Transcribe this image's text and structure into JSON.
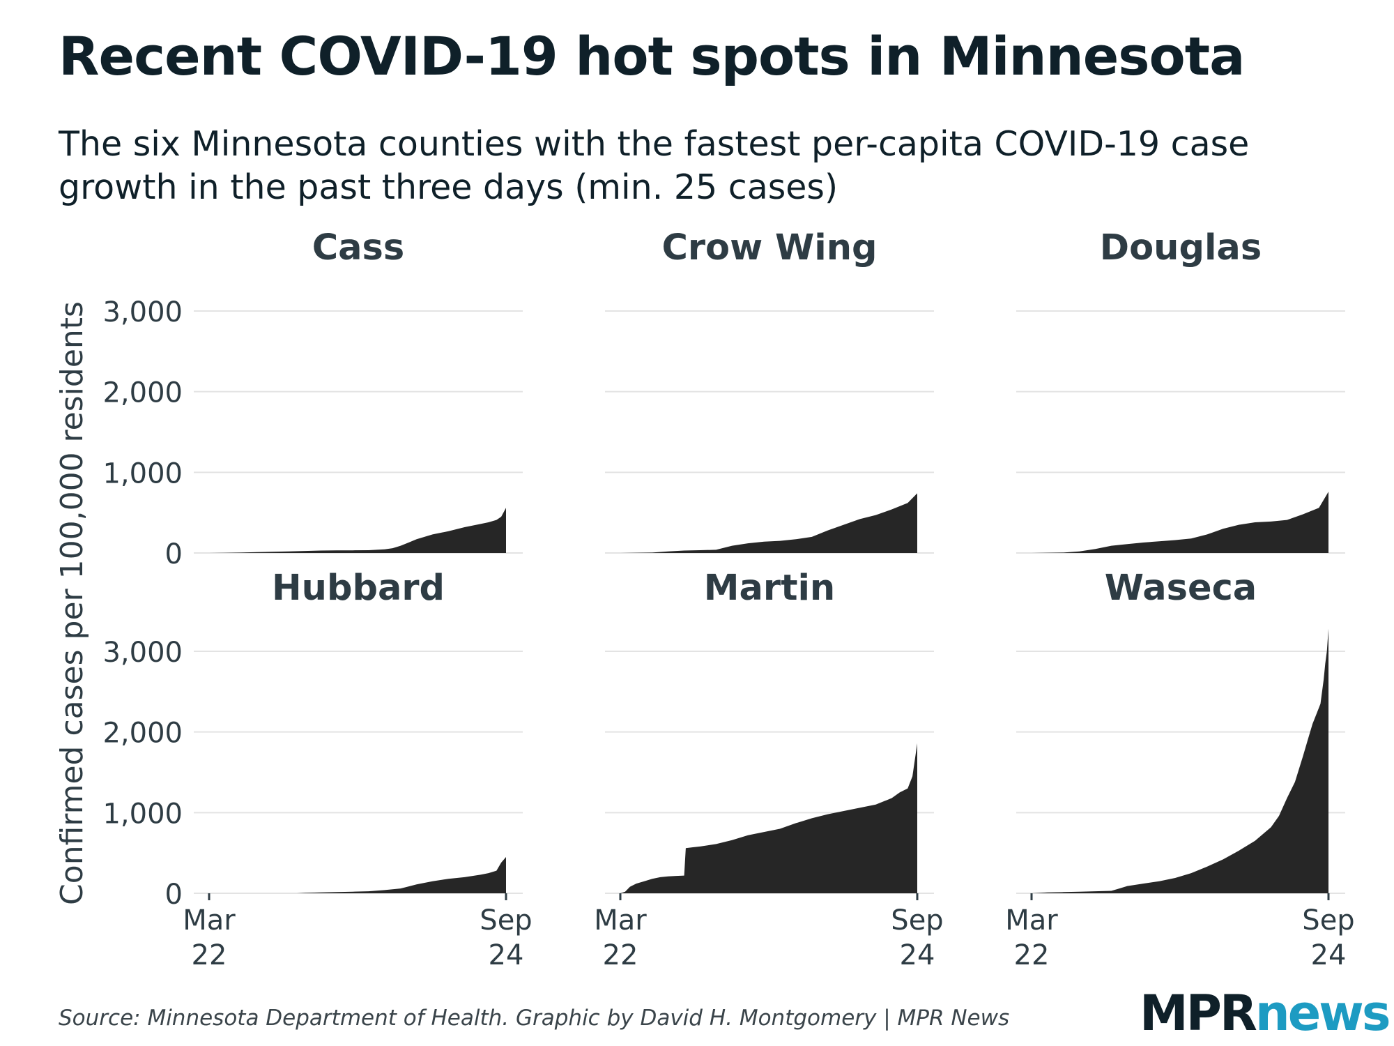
{
  "title": "Recent COVID-19 hot spots in Minnesota",
  "subtitle_line1": "The six Minnesota counties with the fastest per-capita COVID-19 case",
  "subtitle_line2": "growth in the past three days (min. 25 cases)",
  "source": "Source: Minnesota Department of Health. Graphic by David H. Montgomery | MPR News",
  "logo": {
    "part1": "MPR",
    "part2": "news"
  },
  "colors": {
    "area": "#262626",
    "grid": "#e3e3e3",
    "text": "#2e3c44",
    "accent": "#1d9bc2"
  },
  "chart_data": {
    "type": "area",
    "ylabel": "Confirmed cases per 100,000 residents",
    "xlabel": "",
    "ylim": [
      0,
      3300
    ],
    "yticks": [
      0,
      1000,
      2000,
      3000
    ],
    "ytick_labels": [
      "0",
      "1,000",
      "2,000",
      "3,000"
    ],
    "x_range_days": [
      0,
      186
    ],
    "xticks": [
      {
        "day": 0,
        "line1": "Mar",
        "line2": "22"
      },
      {
        "day": 186,
        "line1": "Sep",
        "line2": "24"
      }
    ],
    "series": [
      {
        "name": "Cass",
        "x": [
          0,
          10,
          20,
          30,
          40,
          50,
          60,
          70,
          80,
          90,
          100,
          110,
          115,
          120,
          125,
          130,
          140,
          150,
          160,
          170,
          175,
          180,
          183,
          186
        ],
        "values": [
          0,
          2,
          5,
          10,
          15,
          20,
          25,
          30,
          32,
          33,
          35,
          45,
          60,
          90,
          130,
          170,
          230,
          270,
          320,
          360,
          380,
          410,
          450,
          560
        ]
      },
      {
        "name": "Crow Wing",
        "x": [
          0,
          20,
          30,
          40,
          50,
          60,
          70,
          80,
          90,
          100,
          110,
          120,
          130,
          140,
          150,
          160,
          170,
          180,
          186
        ],
        "values": [
          0,
          5,
          20,
          30,
          35,
          40,
          90,
          120,
          140,
          150,
          170,
          200,
          280,
          350,
          420,
          470,
          540,
          620,
          740
        ]
      },
      {
        "name": "Douglas",
        "x": [
          0,
          20,
          30,
          40,
          50,
          60,
          70,
          80,
          90,
          100,
          110,
          120,
          130,
          140,
          150,
          160,
          170,
          180,
          186
        ],
        "values": [
          0,
          5,
          20,
          50,
          90,
          110,
          130,
          145,
          160,
          180,
          230,
          300,
          350,
          380,
          390,
          410,
          480,
          560,
          760
        ]
      },
      {
        "name": "Hubbard",
        "x": [
          0,
          55,
          60,
          70,
          80,
          90,
          100,
          110,
          120,
          130,
          140,
          150,
          160,
          170,
          175,
          180,
          183,
          186
        ],
        "values": [
          0,
          0,
          5,
          10,
          15,
          20,
          25,
          40,
          60,
          110,
          150,
          180,
          200,
          230,
          250,
          280,
          380,
          450
        ]
      },
      {
        "name": "Martin",
        "x": [
          0,
          3,
          6,
          10,
          15,
          20,
          25,
          30,
          35,
          40,
          41,
          45,
          50,
          60,
          70,
          80,
          90,
          100,
          110,
          120,
          130,
          140,
          150,
          160,
          170,
          175,
          180,
          183,
          186
        ],
        "values": [
          0,
          20,
          80,
          120,
          150,
          180,
          200,
          210,
          215,
          220,
          560,
          570,
          580,
          610,
          660,
          720,
          760,
          800,
          870,
          930,
          980,
          1020,
          1060,
          1100,
          1180,
          1250,
          1300,
          1450,
          1860
        ]
      },
      {
        "name": "Waseca",
        "x": [
          0,
          10,
          20,
          30,
          40,
          50,
          55,
          60,
          70,
          80,
          90,
          100,
          110,
          120,
          130,
          140,
          150,
          155,
          160,
          165,
          170,
          173,
          176,
          179,
          181,
          183,
          184,
          185,
          186
        ],
        "values": [
          0,
          10,
          15,
          20,
          25,
          30,
          60,
          90,
          120,
          150,
          190,
          250,
          330,
          420,
          530,
          650,
          820,
          960,
          1180,
          1380,
          1700,
          1900,
          2100,
          2250,
          2350,
          2650,
          2850,
          3000,
          3280
        ]
      }
    ]
  }
}
